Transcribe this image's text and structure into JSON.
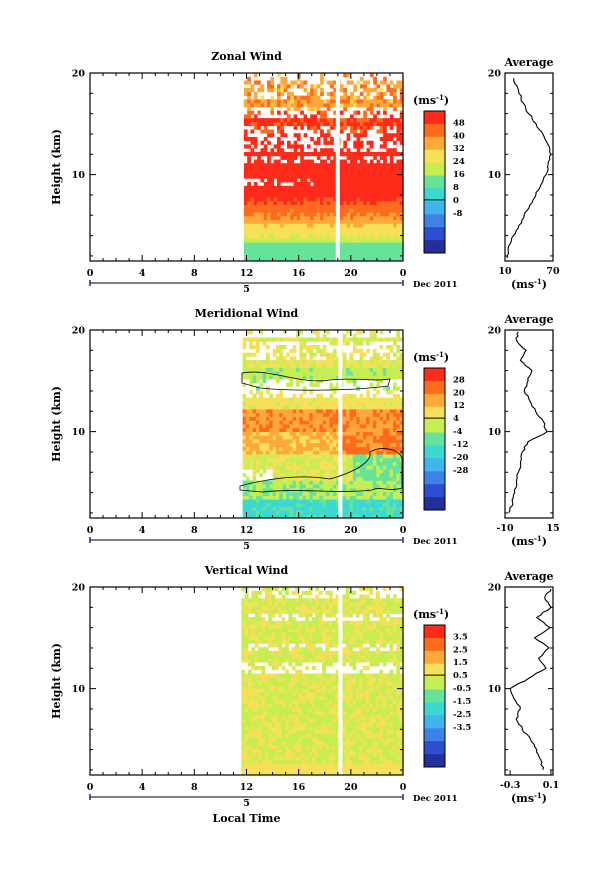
{
  "figure": {
    "xlabel": "Local Time",
    "date_label": "Dec 2011",
    "day_label": "5",
    "units_label": "(ms⁻¹)",
    "units_base": "(ms",
    "units_sup": "-1",
    "units_close": ")",
    "avg_title": "Average"
  },
  "chart_data": [
    {
      "type": "heatmap",
      "title": "Zonal Wind",
      "ylabel": "Height (km)",
      "xlabel": "Local Time",
      "x_ticks": [
        "0",
        "4",
        "8",
        "12",
        "16",
        "20",
        "0"
      ],
      "xlim_hours": [
        0,
        24
      ],
      "y_ticks": [
        "10",
        "20"
      ],
      "ylim_km": [
        1.5,
        20
      ],
      "data_start_hour": 11.8,
      "gap_hour": 19.0,
      "colorbar": {
        "units": "(ms⁻¹)",
        "labels": [
          "48",
          "40",
          "32",
          "24",
          "16",
          "8",
          "0",
          "-8"
        ],
        "colors": [
          "#ff2a1a",
          "#ff6a1e",
          "#ffa83a",
          "#f6e05a",
          "#c6ee52",
          "#66e39a",
          "#3cd8d2",
          "#40b4ec",
          "#3e82e6",
          "#2c4fd2",
          "#232f9b"
        ]
      },
      "profile": {
        "title": "Average",
        "x_ticks": [
          "10",
          "70"
        ],
        "xlim": [
          10,
          70
        ],
        "xlabel": "(ms⁻¹)",
        "heights_km": [
          1.8,
          2.5,
          3.5,
          4.5,
          5.5,
          6.5,
          7.5,
          8.5,
          9.5,
          10.5,
          11.5,
          12.5,
          13.5,
          14.5,
          15.5,
          16.5,
          17.5,
          18.5,
          19.5
        ],
        "values": [
          13,
          14,
          18,
          24,
          31,
          38,
          45,
          52,
          58,
          64,
          66,
          66,
          60,
          52,
          44,
          36,
          30,
          26,
          21
        ]
      }
    },
    {
      "type": "heatmap",
      "title": "Meridional Wind",
      "ylabel": "Height (km)",
      "xlabel": "Local Time",
      "x_ticks": [
        "0",
        "4",
        "8",
        "12",
        "16",
        "20",
        "0"
      ],
      "xlim_hours": [
        0,
        24
      ],
      "y_ticks": [
        "10",
        "20"
      ],
      "ylim_km": [
        1.5,
        20
      ],
      "data_start_hour": 11.7,
      "gap_hour": 19.2,
      "colorbar": {
        "units": "(ms⁻¹)",
        "labels": [
          "28",
          "20",
          "12",
          "4",
          "-4",
          "-12",
          "-20",
          "-28"
        ],
        "colors": [
          "#ff2a1a",
          "#ff6a1e",
          "#ffa83a",
          "#f6e05a",
          "#c6ee52",
          "#66e39a",
          "#3cd8d2",
          "#40b4ec",
          "#3e82e6",
          "#2c4fd2",
          "#232f9b"
        ]
      },
      "profile": {
        "title": "Average",
        "x_ticks": [
          "-10",
          "15"
        ],
        "xlim": [
          -10,
          15
        ],
        "xlabel": "(ms⁻¹)",
        "heights_km": [
          2,
          3,
          4,
          5,
          6,
          7,
          8,
          9,
          10,
          11,
          12,
          13,
          14,
          15,
          16,
          17,
          18,
          19,
          19.8
        ],
        "values": [
          -8,
          -6,
          -5,
          -4,
          -3,
          -2,
          -1,
          2,
          12,
          10,
          6,
          3,
          0,
          2,
          4,
          -2,
          1,
          -4,
          -3
        ]
      }
    },
    {
      "type": "heatmap",
      "title": "Vertical Wind",
      "ylabel": "Height (km)",
      "xlabel": "Local Time",
      "x_ticks": [
        "0",
        "4",
        "8",
        "12",
        "16",
        "20",
        "0"
      ],
      "xlim_hours": [
        0,
        24
      ],
      "y_ticks": [
        "10",
        "20"
      ],
      "ylim_km": [
        1.5,
        20
      ],
      "data_start_hour": 11.6,
      "gap_hour": 19.2,
      "colorbar": {
        "units": "(ms⁻¹)",
        "labels": [
          "3.5",
          "2.5",
          "1.5",
          "0.5",
          "-0.5",
          "-1.5",
          "-2.5",
          "-3.5"
        ],
        "colors": [
          "#ff2a1a",
          "#ff6a1e",
          "#ffa83a",
          "#f6e05a",
          "#c6ee52",
          "#66e39a",
          "#3cd8d2",
          "#40b4ec",
          "#3e82e6",
          "#2c4fd2",
          "#232f9b"
        ]
      },
      "profile": {
        "title": "Average",
        "x_ticks": [
          "-0.3",
          "0.1"
        ],
        "xlim": [
          -0.35,
          0.12
        ],
        "xlabel": "(ms⁻¹)",
        "heights_km": [
          2,
          3,
          4,
          5,
          6,
          7,
          8,
          9,
          10,
          11,
          12,
          13,
          14,
          15,
          16,
          17,
          18,
          19,
          19.8
        ],
        "values": [
          0.02,
          0.0,
          -0.04,
          -0.1,
          -0.18,
          -0.24,
          -0.2,
          -0.26,
          -0.3,
          -0.12,
          0.05,
          -0.02,
          0.08,
          -0.06,
          0.09,
          -0.04,
          0.1,
          0.04,
          0.1
        ]
      }
    }
  ]
}
